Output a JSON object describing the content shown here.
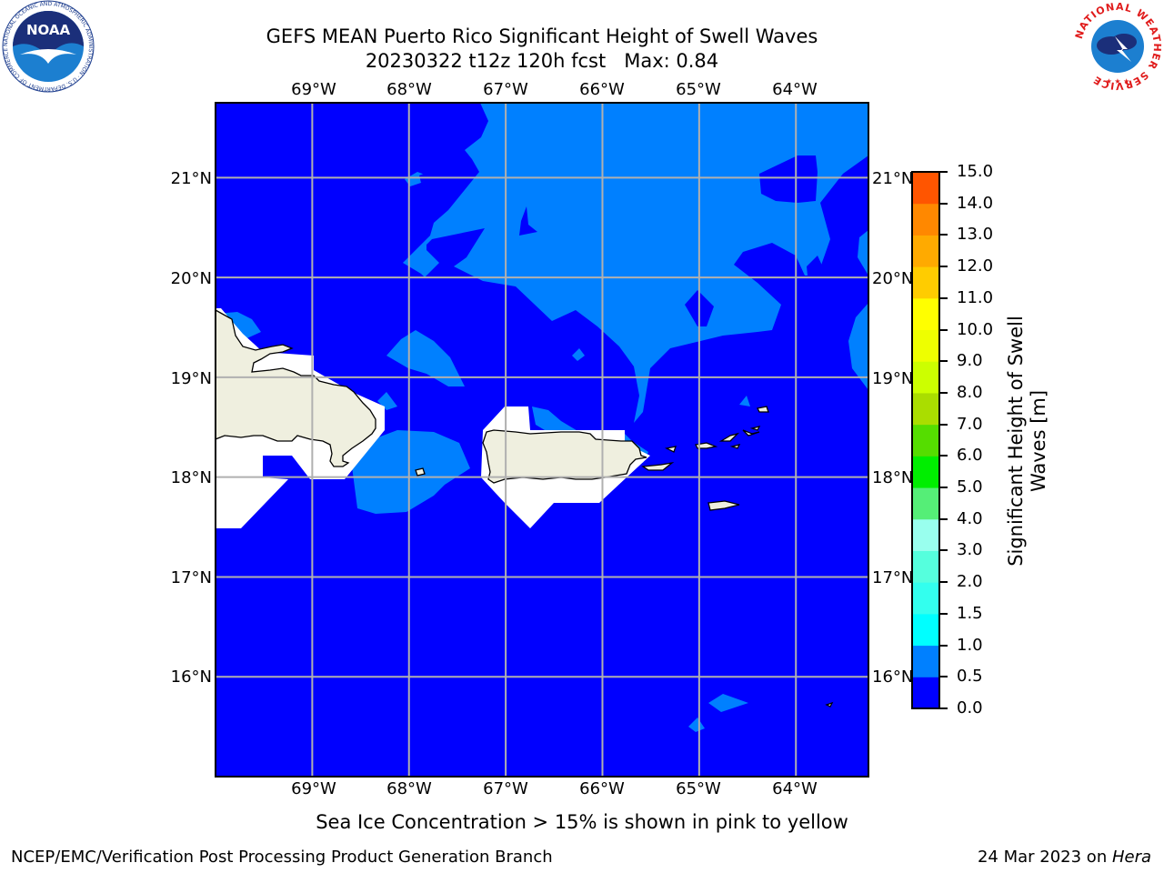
{
  "title": {
    "line1": "GEFS MEAN Puerto Rico Significant Height of Swell Waves",
    "line2": "20230322 t12z 120h fcst   Max: 0.84"
  },
  "map": {
    "longitude_labels": [
      "69°W",
      "68°W",
      "67°W",
      "66°W",
      "65°W",
      "64°W"
    ],
    "latitude_labels": [
      "21°N",
      "20°N",
      "19°N",
      "18°N",
      "17°N",
      "16°N"
    ],
    "lon_range": [
      -70.0,
      -63.25
    ],
    "lat_range": [
      15.0,
      21.75
    ],
    "ocean_color": "#0000ff",
    "swell_0_5_color": "#0080ff",
    "land_color": "#efefdf",
    "masked_color": "#ffffff",
    "grid_color": "#b0b0b0"
  },
  "colorbar": {
    "label_line1": "Significant Height of Swell",
    "label_line2": "Waves [m]",
    "ticks": [
      "0.0",
      "0.5",
      "1.0",
      "1.5",
      "2.0",
      "3.0",
      "4.0",
      "5.0",
      "6.0",
      "7.0",
      "8.0",
      "9.0",
      "10.0",
      "11.0",
      "12.0",
      "13.0",
      "14.0",
      "15.0"
    ],
    "colors": [
      "#0000ff",
      "#0080ff",
      "#00ffff",
      "#33ffee",
      "#55ffdd",
      "#99ffee",
      "#55ee77",
      "#00ee00",
      "#55dd00",
      "#aadd00",
      "#ccff00",
      "#eeff00",
      "#ffff00",
      "#ffcc00",
      "#ffaa00",
      "#ff8800",
      "#ff5500",
      "#ff2200",
      "#ff0000"
    ]
  },
  "logos": {
    "noaa_text": "NOAA",
    "noaa_ring_text": "NATIONAL OCEANIC AND ATMOSPHERIC ADMINISTRATION · U.S. DEPARTMENT OF COMMERCE",
    "nws_ring_text": "NATIONAL WEATHER SERVICE"
  },
  "note": "Sea Ice Concentration > 15% is shown in pink to yellow",
  "footer": {
    "left": "NCEP/EMC/Verification Post Processing Product Generation Branch",
    "right_date": "24 Mar 2023 on ",
    "right_host": "Hera"
  }
}
